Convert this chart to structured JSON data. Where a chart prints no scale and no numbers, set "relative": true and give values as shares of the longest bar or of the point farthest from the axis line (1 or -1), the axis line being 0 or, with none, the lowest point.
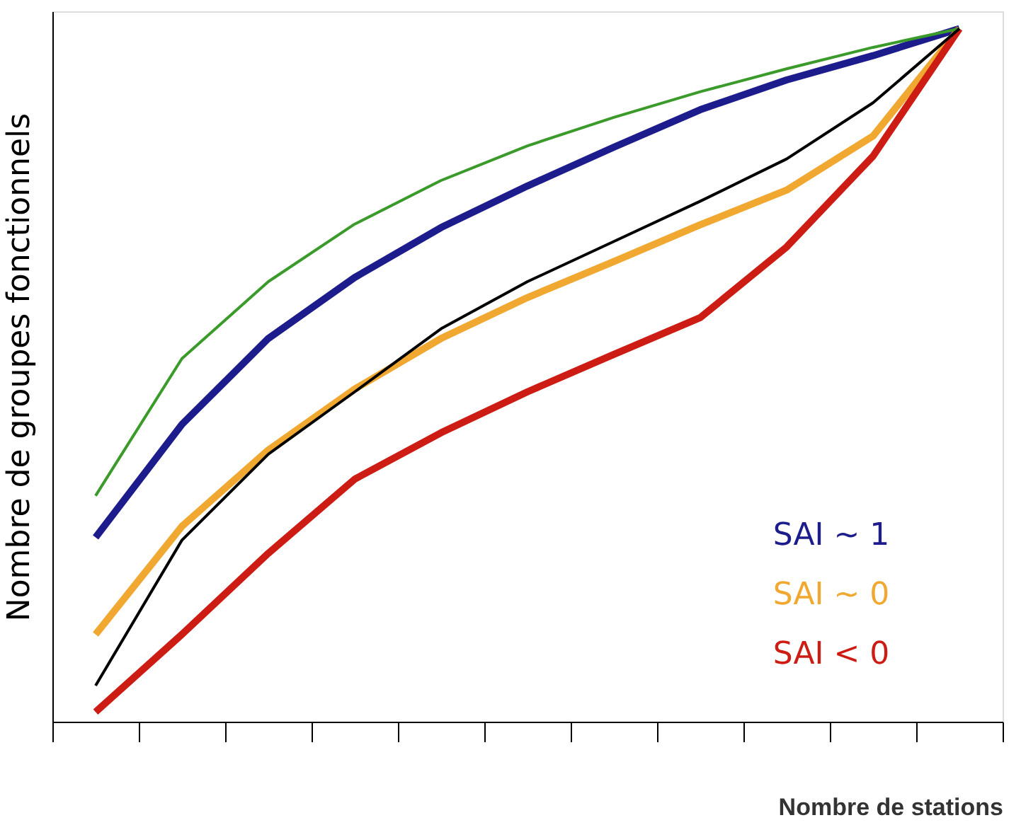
{
  "chart_data": {
    "type": "line",
    "relative": true,
    "xlabel": "Nombre de stations",
    "ylabel": "Nombre de groupes fonctionnels",
    "categories": [
      null,
      null,
      null,
      null,
      null,
      null,
      null,
      null,
      null,
      null,
      null
    ],
    "legend": "bottom right",
    "marker": "none",
    "line_style": "solid",
    "tick_labels": false,
    "series": [
      {
        "color": "#3a9a2a",
        "values": [
          0.326,
          0.524,
          0.635,
          0.718,
          0.781,
          0.831,
          0.872,
          0.909,
          0.942,
          0.973,
          1
        ]
      },
      {
        "name": "SAI ~ 1",
        "color": "#1c1c8c",
        "values": [
          0.266,
          0.429,
          0.553,
          0.641,
          0.713,
          0.773,
          0.829,
          0.883,
          0.926,
          0.961,
          1
        ]
      },
      {
        "color": "#000000",
        "values": [
          0.052,
          0.262,
          0.386,
          0.476,
          0.567,
          0.635,
          0.693,
          0.751,
          0.812,
          0.893,
          1
        ]
      },
      {
        "name": "SAI ~ 0",
        "color": "#f0a830",
        "values": [
          0.126,
          0.282,
          0.392,
          0.48,
          0.553,
          0.612,
          0.664,
          0.717,
          0.767,
          0.845,
          1
        ]
      },
      {
        "name": "SAI < 0",
        "color": "#cc1c14",
        "values": [
          0.014,
          0.126,
          0.243,
          0.35,
          0.417,
          0.476,
          0.53,
          0.583,
          0.685,
          0.816,
          1
        ]
      }
    ]
  }
}
